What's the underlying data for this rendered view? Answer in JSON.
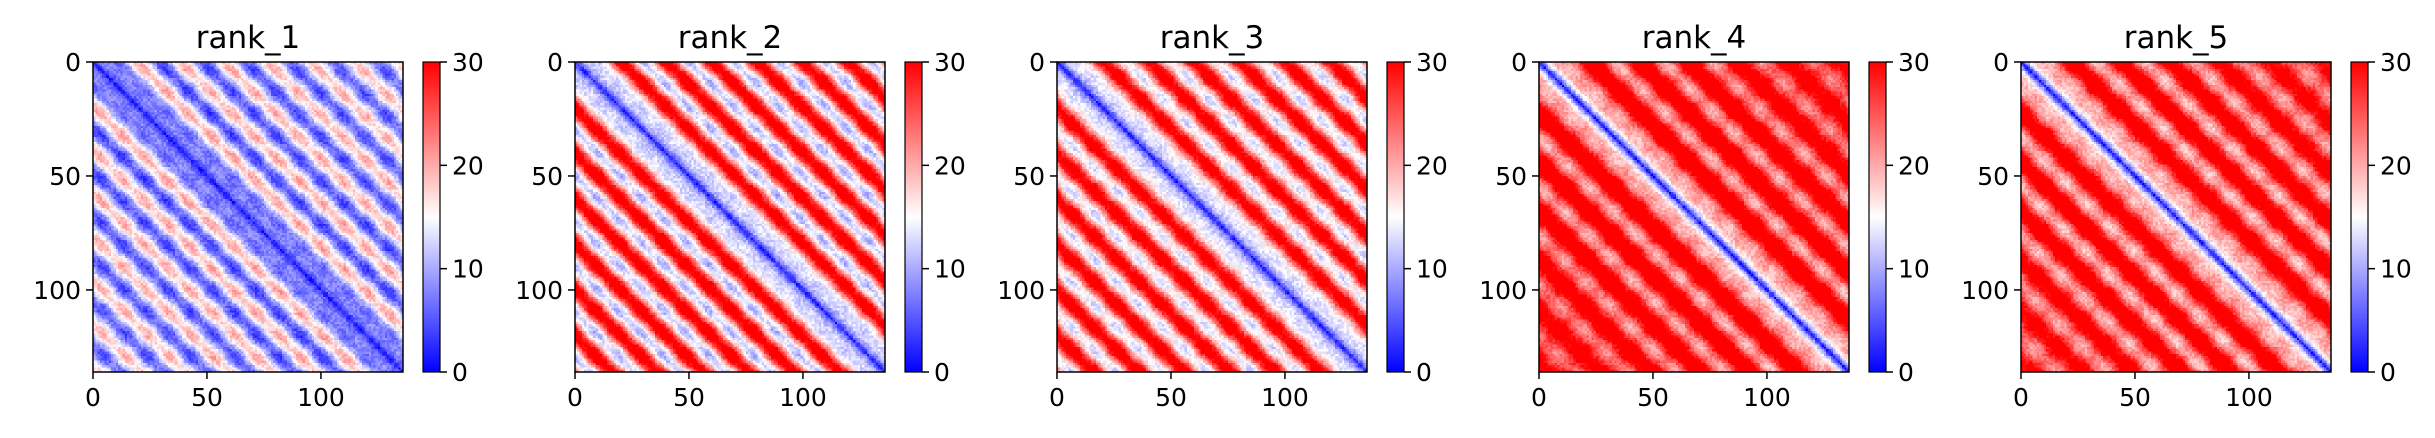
{
  "colors": {
    "low": "#0000ff",
    "mid": "#ffffff",
    "high": "#ff0000"
  },
  "chart_data": [
    {
      "type": "heatmap",
      "title": "rank_1",
      "matrix_size": 136,
      "xlim": [
        0,
        136
      ],
      "ylim": [
        0,
        136
      ],
      "x_ticks": [
        0,
        50,
        100
      ],
      "y_ticks": [
        0,
        50,
        100
      ],
      "y_inverted": true,
      "colormap": "bwr",
      "color_range": [
        0,
        30
      ],
      "colorbar_ticks": [
        0,
        10,
        20,
        30
      ],
      "pattern": {
        "diag_offset": 1.5,
        "diag_slope": 0.9,
        "band_period": 19,
        "band_amplitude": 6,
        "base": 9,
        "far_offset": 3,
        "far_scale": 16
      }
    },
    {
      "type": "heatmap",
      "title": "rank_2",
      "matrix_size": 136,
      "xlim": [
        0,
        136
      ],
      "ylim": [
        0,
        136
      ],
      "x_ticks": [
        0,
        50,
        100
      ],
      "y_ticks": [
        0,
        50,
        100
      ],
      "y_inverted": true,
      "colormap": "bwr",
      "color_range": [
        0,
        30
      ],
      "colorbar_ticks": [
        0,
        10,
        20,
        30
      ],
      "pattern": {
        "diag_offset": 2,
        "diag_slope": 1.2,
        "band_period": 20,
        "band_amplitude": 9,
        "base": 16,
        "far_offset": 6,
        "far_scale": 20
      }
    },
    {
      "type": "heatmap",
      "title": "rank_3",
      "matrix_size": 136,
      "xlim": [
        0,
        136
      ],
      "ylim": [
        0,
        136
      ],
      "x_ticks": [
        0,
        50,
        100
      ],
      "y_ticks": [
        0,
        50,
        100
      ],
      "y_inverted": true,
      "colormap": "bwr",
      "color_range": [
        0,
        30
      ],
      "colorbar_ticks": [
        0,
        10,
        20,
        30
      ],
      "pattern": {
        "diag_offset": 2,
        "diag_slope": 1.2,
        "band_period": 20,
        "band_amplitude": 8,
        "base": 17,
        "far_offset": 6,
        "far_scale": 20
      }
    },
    {
      "type": "heatmap",
      "title": "rank_4",
      "matrix_size": 136,
      "xlim": [
        0,
        136
      ],
      "ylim": [
        0,
        136
      ],
      "x_ticks": [
        0,
        50,
        100
      ],
      "y_ticks": [
        0,
        50,
        100
      ],
      "y_inverted": true,
      "colormap": "bwr",
      "color_range": [
        0,
        30
      ],
      "colorbar_ticks": [
        0,
        10,
        20,
        30
      ],
      "pattern": {
        "diag_offset": 1.5,
        "diag_slope": 1.5,
        "band_period": 22,
        "band_amplitude": 6,
        "base": 23,
        "far_offset": 5,
        "far_scale": 14
      }
    },
    {
      "type": "heatmap",
      "title": "rank_5",
      "matrix_size": 136,
      "xlim": [
        0,
        136
      ],
      "ylim": [
        0,
        136
      ],
      "x_ticks": [
        0,
        50,
        100
      ],
      "y_ticks": [
        0,
        50,
        100
      ],
      "y_inverted": true,
      "colormap": "bwr",
      "color_range": [
        0,
        30
      ],
      "colorbar_ticks": [
        0,
        10,
        20,
        30
      ],
      "pattern": {
        "diag_offset": 1.5,
        "diag_slope": 1.5,
        "band_period": 22,
        "band_amplitude": 6,
        "base": 22,
        "far_offset": 5,
        "far_scale": 14
      }
    }
  ]
}
